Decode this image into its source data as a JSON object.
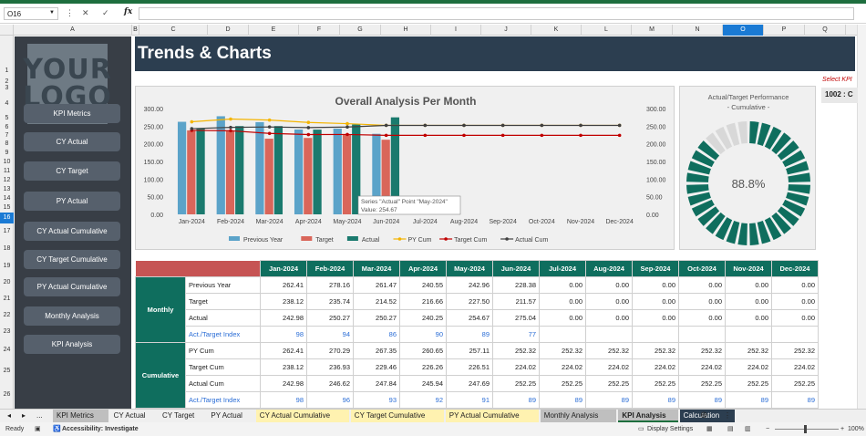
{
  "formula_bar": {
    "name_box": "O16",
    "fx": "fx",
    "formula": ""
  },
  "columns": [
    "A",
    "B",
    "C",
    "D",
    "E",
    "F",
    "G",
    "H",
    "I",
    "J",
    "K",
    "L",
    "M",
    "N",
    "O",
    "P",
    "Q"
  ],
  "selected_column": "O",
  "rows": [
    "1",
    "2",
    "3",
    "4",
    "5",
    "6",
    "7",
    "8",
    "9",
    "10",
    "11",
    "12",
    "13",
    "14",
    "15",
    "16",
    "17",
    "18",
    "19",
    "20",
    "21",
    "22",
    "23",
    "24",
    "25",
    "26"
  ],
  "selected_row": "16",
  "logo": {
    "line1": "YOUR",
    "line2": "LOGO"
  },
  "nav": [
    "KPI Metrics",
    "CY Actual",
    "CY Target",
    "PY Actual",
    "CY Actual Cumulative",
    "CY Target Cumulative",
    "PY Actual Cumulative",
    "Monthly Analysis",
    "KPI Analysis"
  ],
  "banner_title": "Trends & Charts",
  "select_kpi_label": "Select KPI",
  "kpi_value": "1002 : C",
  "colors": {
    "teal": "#1a7a6e",
    "red": "#d9665a",
    "lightblue": "#5ba3c9",
    "banner": "#2c3e50",
    "pycum": "#f4b400",
    "targetcum": "#c00000",
    "actualcum": "#404040"
  },
  "chart_data": {
    "type": "bar",
    "title": "Overall Analysis Per Month",
    "categories": [
      "Jan-2024",
      "Feb-2024",
      "Mar-2024",
      "Apr-2024",
      "May-2024",
      "Jun-2024",
      "Jul-2024",
      "Aug-2024",
      "Sep-2024",
      "Oct-2024",
      "Nov-2024",
      "Dec-2024"
    ],
    "ylim": [
      0,
      300
    ],
    "yticks": [
      "300.00",
      "250.00",
      "200.00",
      "150.00",
      "100.00",
      "50.00",
      "0.00"
    ],
    "series": [
      {
        "name": "Previous Year",
        "kind": "bar",
        "values": [
          262.41,
          278.16,
          261.47,
          240.55,
          242.96,
          228.38,
          0,
          0,
          0,
          0,
          0,
          0
        ]
      },
      {
        "name": "Target",
        "kind": "bar",
        "values": [
          238.12,
          235.74,
          214.52,
          216.66,
          227.5,
          211.57,
          0,
          0,
          0,
          0,
          0,
          0
        ]
      },
      {
        "name": "Actual",
        "kind": "bar",
        "values": [
          242.98,
          250.27,
          250.27,
          240.25,
          254.67,
          275.04,
          0,
          0,
          0,
          0,
          0,
          0
        ]
      },
      {
        "name": "PY Cum",
        "kind": "line",
        "values": [
          262.41,
          270.29,
          267.35,
          260.65,
          257.11,
          252.32,
          252.32,
          252.32,
          252.32,
          252.32,
          252.32,
          252.32
        ]
      },
      {
        "name": "Target Cum",
        "kind": "line",
        "values": [
          238.12,
          236.93,
          229.46,
          226.26,
          226.51,
          224.02,
          224.02,
          224.02,
          224.02,
          224.02,
          224.02,
          224.02
        ]
      },
      {
        "name": "Actual Cum",
        "kind": "line",
        "values": [
          242.98,
          246.62,
          247.84,
          245.94,
          247.69,
          252.25,
          252.25,
          252.25,
          252.25,
          252.25,
          252.25,
          252.25
        ]
      }
    ],
    "tooltip": {
      "line1": "Series \"Actual\" Point \"May-2024\"",
      "line2": "Value: 254.67"
    }
  },
  "donut": {
    "title_line1": "Actual/Target Performance",
    "title_line2": "- Cumulative -",
    "value": "88.8%",
    "fraction": 0.888
  },
  "table": {
    "months": [
      "Jan-2024",
      "Feb-2024",
      "Mar-2024",
      "Apr-2024",
      "May-2024",
      "Jun-2024",
      "Jul-2024",
      "Aug-2024",
      "Sep-2024",
      "Oct-2024",
      "Nov-2024",
      "Dec-2024"
    ],
    "monthly_label": "Monthly",
    "cumulative_label": "Cumulative",
    "monthly": [
      {
        "label": "Previous Year",
        "values": [
          "262.41",
          "278.16",
          "261.47",
          "240.55",
          "242.96",
          "228.38",
          "0.00",
          "0.00",
          "0.00",
          "0.00",
          "0.00",
          "0.00"
        ]
      },
      {
        "label": "Target",
        "values": [
          "238.12",
          "235.74",
          "214.52",
          "216.66",
          "227.50",
          "211.57",
          "0.00",
          "0.00",
          "0.00",
          "0.00",
          "0.00",
          "0.00"
        ]
      },
      {
        "label": "Actual",
        "values": [
          "242.98",
          "250.27",
          "250.27",
          "240.25",
          "254.67",
          "275.04",
          "0.00",
          "0.00",
          "0.00",
          "0.00",
          "0.00",
          "0.00"
        ]
      },
      {
        "label": "Act./Target Index",
        "values": [
          "98",
          "94",
          "86",
          "90",
          "89",
          "77",
          "",
          "",
          "",
          "",
          "",
          ""
        ]
      }
    ],
    "cumulative": [
      {
        "label": "PY Cum",
        "values": [
          "262.41",
          "270.29",
          "267.35",
          "260.65",
          "257.11",
          "252.32",
          "252.32",
          "252.32",
          "252.32",
          "252.32",
          "252.32",
          "252.32"
        ]
      },
      {
        "label": "Target Cum",
        "values": [
          "238.12",
          "236.93",
          "229.46",
          "226.26",
          "226.51",
          "224.02",
          "224.02",
          "224.02",
          "224.02",
          "224.02",
          "224.02",
          "224.02"
        ]
      },
      {
        "label": "Actual Cum",
        "values": [
          "242.98",
          "246.62",
          "247.84",
          "245.94",
          "247.69",
          "252.25",
          "252.25",
          "252.25",
          "252.25",
          "252.25",
          "252.25",
          "252.25"
        ]
      },
      {
        "label": "Act./Target Index",
        "values": [
          "98",
          "96",
          "93",
          "92",
          "91",
          "89",
          "89",
          "89",
          "89",
          "89",
          "89",
          "89"
        ]
      }
    ]
  },
  "sheet_tabs": [
    "KPI Metrics",
    "CY Actual",
    "CY Target",
    "PY Actual",
    "CY Actual Cumulative",
    "CY Target Cumulative",
    "PY Actual Cumulative",
    "Monthly Analysis",
    "KPI Analysis",
    "Calculation"
  ],
  "active_tab": "KPI Analysis",
  "tab_nav_more": "...",
  "status": {
    "ready": "Ready",
    "accessibility": "Accessibility: Investigate",
    "display_settings": "Display Settings",
    "zoom": "100%"
  }
}
